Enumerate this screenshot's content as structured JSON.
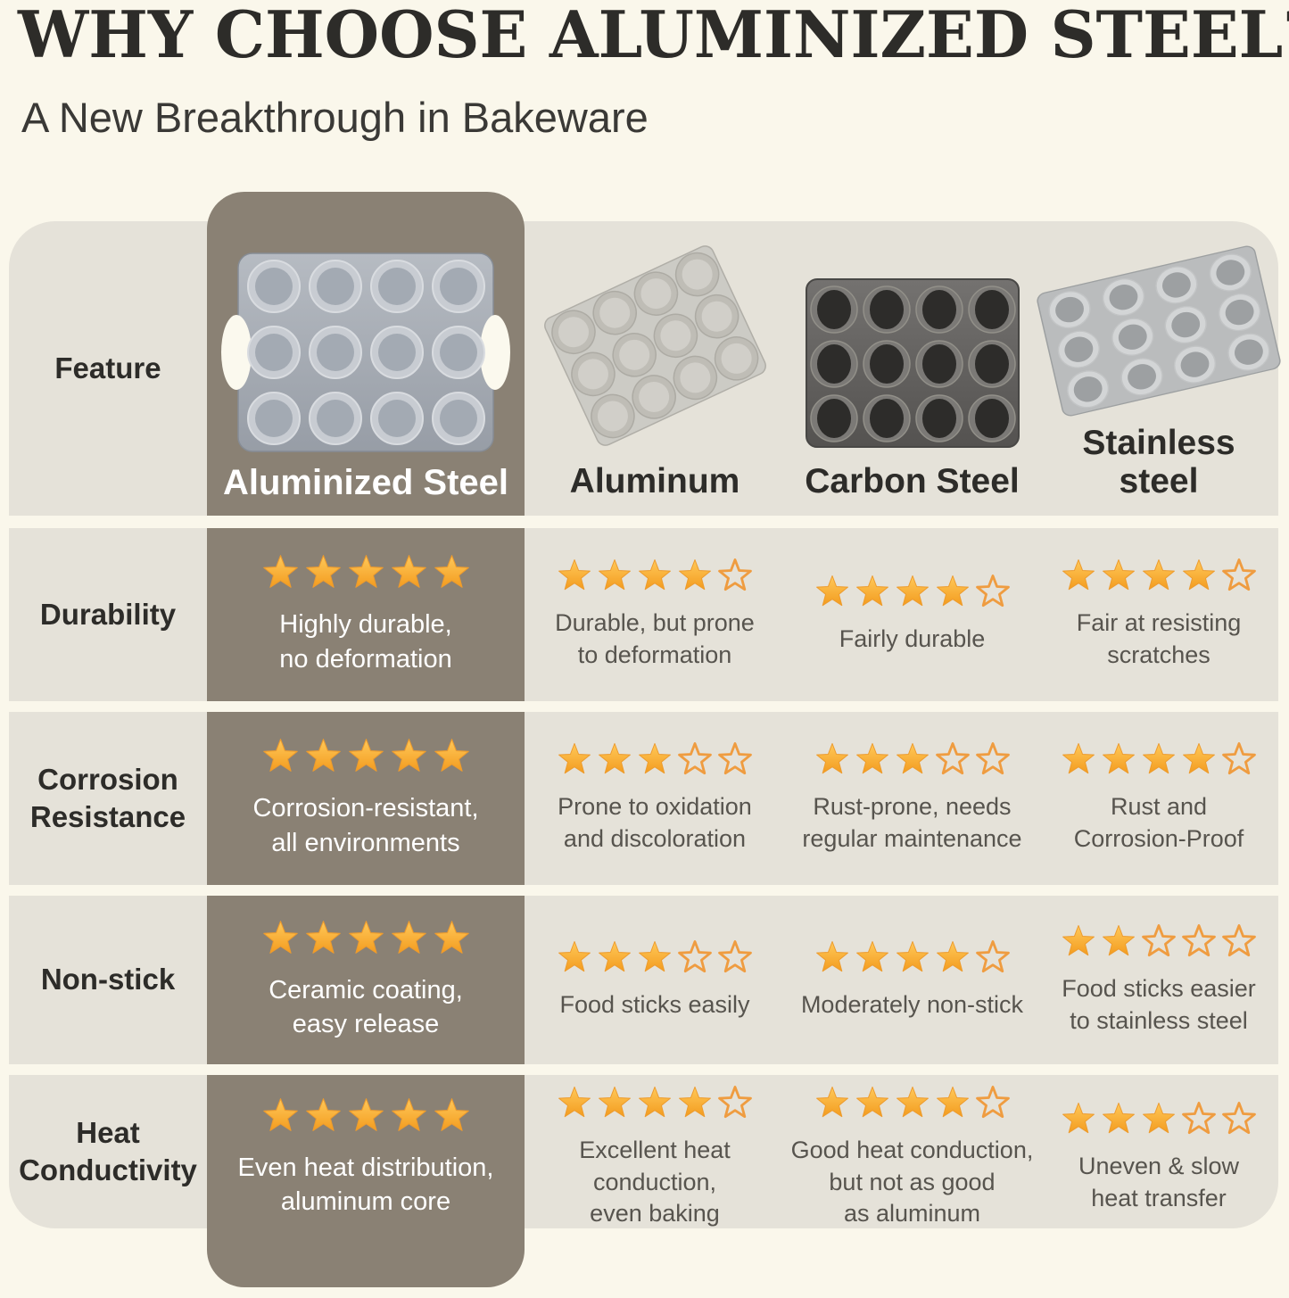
{
  "header": {
    "title": "WHY CHOOSE ALUMINIZED STEEL?",
    "subtitle": "A New Breakthrough in Bakeware"
  },
  "table": {
    "feature_label": "Feature",
    "columns": [
      {
        "label": "Aluminized Steel",
        "highlight": true,
        "pan_icon": "aluminized-steel-pan"
      },
      {
        "label": "Aluminum",
        "highlight": false,
        "pan_icon": "aluminum-pan"
      },
      {
        "label": "Carbon Steel",
        "highlight": false,
        "pan_icon": "carbon-steel-pan"
      },
      {
        "label": "Stainless\nsteel",
        "highlight": false,
        "pan_icon": "stainless-steel-pan"
      }
    ],
    "rows": [
      {
        "label": "Durability",
        "cells": [
          {
            "stars": 5,
            "text": "Highly durable,\nno deformation"
          },
          {
            "stars": 4,
            "text": "Durable, but prone\nto deformation"
          },
          {
            "stars": 4,
            "text": "Fairly durable"
          },
          {
            "stars": 4,
            "text": "Fair at resisting\nscratches"
          }
        ]
      },
      {
        "label": "Corrosion\nResistance",
        "cells": [
          {
            "stars": 5,
            "text": "Corrosion-resistant,\nall environments"
          },
          {
            "stars": 3,
            "text": "Prone to oxidation\nand discoloration"
          },
          {
            "stars": 3,
            "text": "Rust-prone, needs\nregular maintenance"
          },
          {
            "stars": 4,
            "text": "Rust and\nCorrosion-Proof"
          }
        ]
      },
      {
        "label": "Non-stick",
        "cells": [
          {
            "stars": 5,
            "text": "Ceramic coating,\neasy release"
          },
          {
            "stars": 3,
            "text": "Food sticks easily"
          },
          {
            "stars": 4,
            "text": "Moderately non-stick"
          },
          {
            "stars": 2,
            "text": "Food sticks easier\nto stainless steel"
          }
        ]
      },
      {
        "label": "Heat\nConductivity",
        "cells": [
          {
            "stars": 5,
            "text": "Even heat distribution,\naluminum core"
          },
          {
            "stars": 4,
            "text": "Excellent heat\nconduction,\neven baking"
          },
          {
            "stars": 4,
            "text": "Good heat conduction,\nbut not as good\nas aluminum"
          },
          {
            "stars": 3,
            "text": "Uneven & slow\nheat transfer"
          }
        ]
      }
    ],
    "rating_scale": 5
  },
  "colors": {
    "background": "#faf7eb",
    "band": "#e5e2d9",
    "highlight": "#8a8174",
    "highlight_text": "#ffffff",
    "heading_text": "#2d2c29",
    "body_text": "#57544e",
    "star_filled": "#f7a93a",
    "star_empty_outline": "#ef9c40"
  },
  "chart_data": {
    "type": "table",
    "title": "WHY CHOOSE ALUMINIZED STEEL?",
    "subtitle": "A New Breakthrough in Bakeware",
    "columns": [
      "Feature",
      "Aluminized Steel",
      "Aluminum",
      "Carbon Steel",
      "Stainless steel"
    ],
    "rating_scale": 5,
    "rows": [
      {
        "feature": "Durability",
        "ratings": {
          "Aluminized Steel": 5,
          "Aluminum": 4,
          "Carbon Steel": 4,
          "Stainless steel": 4
        },
        "notes": {
          "Aluminized Steel": "Highly durable, no deformation",
          "Aluminum": "Durable, but prone to deformation",
          "Carbon Steel": "Fairly durable",
          "Stainless steel": "Fair at resisting scratches"
        }
      },
      {
        "feature": "Corrosion Resistance",
        "ratings": {
          "Aluminized Steel": 5,
          "Aluminum": 3,
          "Carbon Steel": 3,
          "Stainless steel": 4
        },
        "notes": {
          "Aluminized Steel": "Corrosion-resistant, all environments",
          "Aluminum": "Prone to oxidation and discoloration",
          "Carbon Steel": "Rust-prone, needs regular maintenance",
          "Stainless steel": "Rust and Corrosion-Proof"
        }
      },
      {
        "feature": "Non-stick",
        "ratings": {
          "Aluminized Steel": 5,
          "Aluminum": 3,
          "Carbon Steel": 4,
          "Stainless steel": 2
        },
        "notes": {
          "Aluminized Steel": "Ceramic coating, easy release",
          "Aluminum": "Food sticks easily",
          "Carbon Steel": "Moderately non-stick",
          "Stainless steel": "Food sticks easier to stainless steel"
        }
      },
      {
        "feature": "Heat Conductivity",
        "ratings": {
          "Aluminized Steel": 5,
          "Aluminum": 4,
          "Carbon Steel": 4,
          "Stainless steel": 3
        },
        "notes": {
          "Aluminized Steel": "Even heat distribution, aluminum core",
          "Aluminum": "Excellent heat conduction, even baking",
          "Carbon Steel": "Good heat conduction, but not as good as aluminum",
          "Stainless steel": "Uneven & slow heat transfer"
        }
      }
    ]
  }
}
